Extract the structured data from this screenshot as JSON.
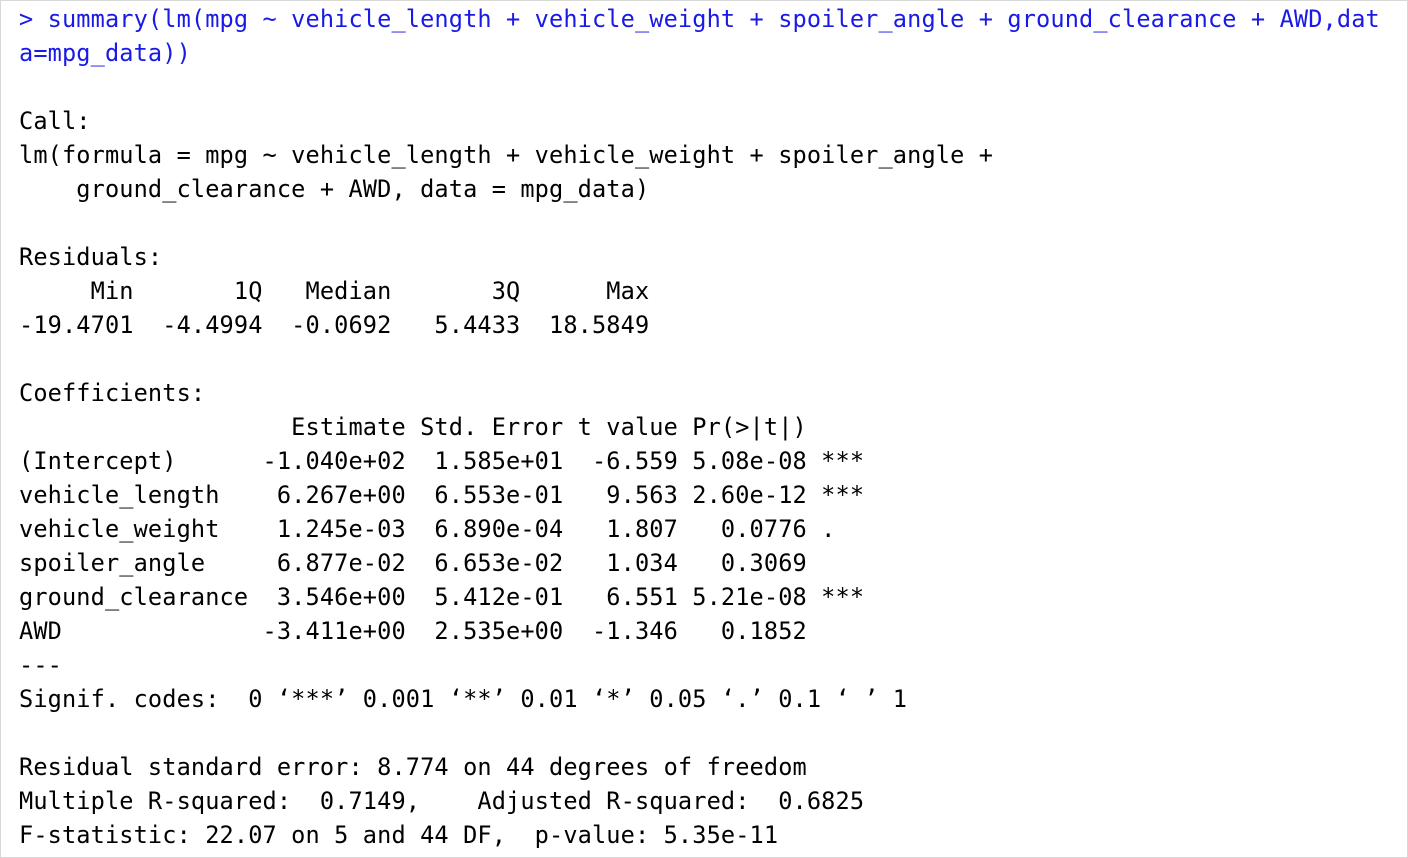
{
  "console": {
    "command_lines": [
      "> summary(lm(mpg ~ vehicle_length + vehicle_weight + spoiler_angle + ground_clearance + AWD,dat",
      "a=mpg_data))"
    ],
    "output_lines": [
      "",
      "Call:",
      "lm(formula = mpg ~ vehicle_length + vehicle_weight + spoiler_angle + ",
      "    ground_clearance + AWD, data = mpg_data)",
      "",
      "Residuals:",
      "     Min       1Q   Median       3Q      Max ",
      "-19.4701  -4.4994  -0.0692   5.4433  18.5849 ",
      "",
      "Coefficients:",
      "                   Estimate Std. Error t value Pr(>|t|)    ",
      "(Intercept)      -1.040e+02  1.585e+01  -6.559 5.08e-08 ***",
      "vehicle_length    6.267e+00  6.553e-01   9.563 2.60e-12 ***",
      "vehicle_weight    1.245e-03  6.890e-04   1.807   0.0776 .  ",
      "spoiler_angle     6.877e-02  6.653e-02   1.034   0.3069    ",
      "ground_clearance  3.546e+00  5.412e-01   6.551 5.21e-08 ***",
      "AWD              -3.411e+00  2.535e+00  -1.346   0.1852    ",
      "---",
      "Signif. codes:  0 ‘***’ 0.001 ‘**’ 0.01 ‘*’ 0.05 ‘.’ 0.1 ‘ ’ 1",
      "",
      "Residual standard error: 8.774 on 44 degrees of freedom",
      "Multiple R-squared:  0.7149,\tAdjusted R-squared:  0.6825 ",
      "F-statistic: 22.07 on 5 and 44 DF,  p-value: 5.35e-11"
    ]
  },
  "colors": {
    "command": "#1a1ae6",
    "output": "#000000",
    "background": "#ffffff",
    "border": "#d8d8d8"
  }
}
